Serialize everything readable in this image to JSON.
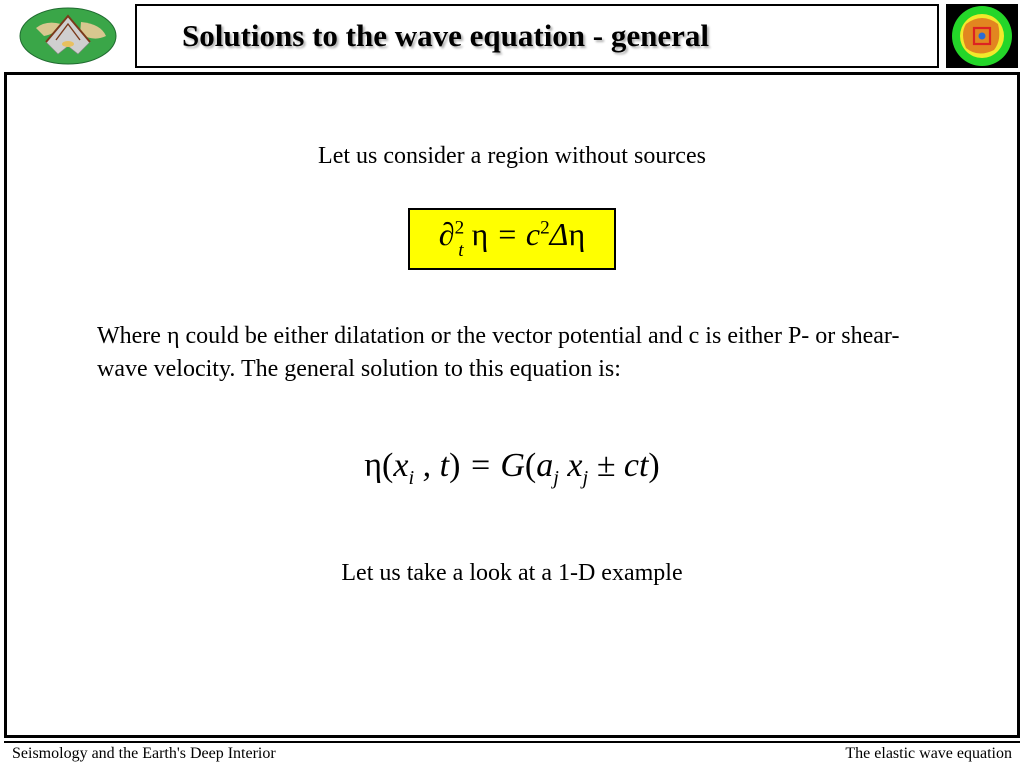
{
  "header": {
    "title": "Solutions to the wave equation - general"
  },
  "content": {
    "intro": "Let us consider a region without sources",
    "equation1": {
      "html": "<span>∂</span><span class='sup'>2</span><span class='sub' style='margin-left:-6px; position:relative; top:4px;'>t</span><span class='eta'> η</span> = <span>c</span><span class='sup'>2</span><span>Δ</span><span class='eta'>η</span>",
      "background": "#ffff00",
      "border_color": "#000000"
    },
    "explanation": "Where η could be either dilatation or the vector potential and c is either P- or shear-wave velocity. The general solution to this equation is:",
    "equation2": {
      "html": "<span class='eta'>η</span><span class='paren'>(</span>x<span class='sub'>i</span> , t<span class='paren'>)</span> = G<span class='paren'>(</span>a<span class='sub'>j</span> x<span class='sub'>j</span> ± ct<span class='paren'>)</span>"
    },
    "closing": "Let us take a look at a 1-D example"
  },
  "footer": {
    "left": "Seismology and the Earth's Deep Interior",
    "right": "The elastic wave equation"
  },
  "logos": {
    "left_globe": {
      "outer": "#3aa648",
      "land": "#d8c78f",
      "cut": "#b5b5b5",
      "line": "#7a3a1a"
    },
    "right_circle": {
      "bg": "#000000",
      "outer": "#24d629",
      "mid": "#f2e92b",
      "inner": "#e07b1f",
      "core": "#d22"
    }
  },
  "styling": {
    "page_bg": "#ffffff",
    "text_color": "#000000",
    "title_fontsize": 31,
    "body_fontsize": 24,
    "eq_fontsize": 33,
    "font_family_body": "Comic Sans MS",
    "font_family_math": "Times New Roman"
  }
}
